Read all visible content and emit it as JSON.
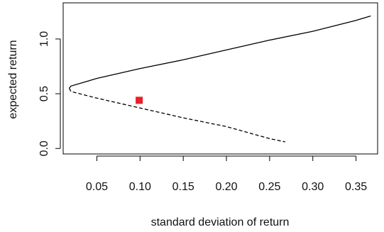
{
  "chart_data": {
    "type": "line",
    "title": "",
    "xlabel": "standard deviation of return",
    "ylabel": "expected return",
    "xlim": [
      0.011,
      0.375
    ],
    "ylim": [
      -0.05,
      1.33
    ],
    "xticks": [
      0.05,
      0.1,
      0.15,
      0.2,
      0.25,
      0.3,
      0.35
    ],
    "xtick_labels": [
      "0.05",
      "0.10",
      "0.15",
      "0.20",
      "0.25",
      "0.30",
      "0.35"
    ],
    "yticks": [
      0.0,
      0.5,
      1.0
    ],
    "ytick_labels": [
      "0.0",
      "0.5",
      "1.0"
    ],
    "grid": false,
    "legend": "none",
    "series": [
      {
        "style": "solid",
        "color": "#000000",
        "x": [
          0.018,
          0.02,
          0.05,
          0.1,
          0.15,
          0.2,
          0.25,
          0.3,
          0.35,
          0.367
        ],
        "y": [
          0.55,
          0.57,
          0.64,
          0.73,
          0.81,
          0.9,
          0.99,
          1.07,
          1.17,
          1.21
        ]
      },
      {
        "style": "dashed",
        "color": "#000000",
        "x": [
          0.018,
          0.02,
          0.05,
          0.1,
          0.15,
          0.2,
          0.25,
          0.268
        ],
        "y": [
          0.55,
          0.52,
          0.46,
          0.37,
          0.28,
          0.2,
          0.09,
          0.06
        ]
      },
      {
        "style": "marker",
        "marker": "square",
        "color": "#e8202a",
        "x": [
          0.099
        ],
        "y": [
          0.44
        ]
      }
    ]
  }
}
